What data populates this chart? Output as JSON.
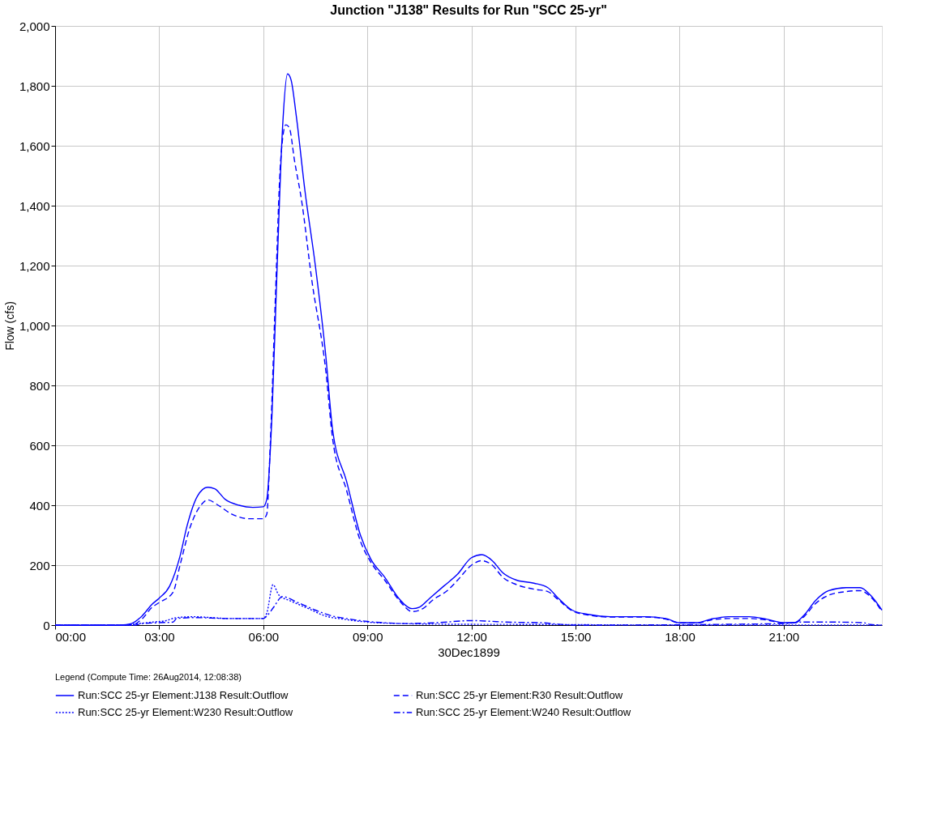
{
  "chart_data": {
    "type": "line",
    "title": "Junction \"J138\" Results for Run \"SCC 25-yr\"",
    "xlabel": "30Dec1899",
    "ylabel": "Flow (cfs)",
    "legend_title": "Legend (Compute Time: 26Aug2014, 12:08:38)",
    "legend": "bottom",
    "grid": true,
    "xlim": [
      0,
      23.83
    ],
    "xticks": [
      {
        "value": 0,
        "label": "00:00"
      },
      {
        "value": 3,
        "label": "03:00"
      },
      {
        "value": 6,
        "label": "06:00"
      },
      {
        "value": 9,
        "label": "09:00"
      },
      {
        "value": 12,
        "label": "12:00"
      },
      {
        "value": 15,
        "label": "15:00"
      },
      {
        "value": 18,
        "label": "18:00"
      },
      {
        "value": 21,
        "label": "21:00"
      }
    ],
    "ylim": [
      0,
      2000
    ],
    "yticks": [
      0,
      200,
      400,
      600,
      800,
      {
        "value": 1000,
        "label": "1,000"
      },
      {
        "value": 1200,
        "label": "1,200"
      },
      {
        "value": 1400,
        "label": "1,400"
      },
      {
        "value": 1600,
        "label": "1,600"
      },
      {
        "value": 1800,
        "label": "1,800"
      },
      {
        "value": 2000,
        "label": "2,000"
      }
    ],
    "series": [
      {
        "name": "Run:SCC 25-yr Element:J138 Result:Outflow",
        "color": "#0000ff",
        "line_style": "solid",
        "x": [
          0,
          1.9,
          2.2,
          2.5,
          2.8,
          3.0,
          3.3,
          3.6,
          3.8,
          4.1,
          4.4,
          4.6,
          4.9,
          5.3,
          5.7,
          6.0,
          6.1,
          6.25,
          6.4,
          6.55,
          6.7,
          6.8,
          6.95,
          7.2,
          7.5,
          7.8,
          8.0,
          8.4,
          8.8,
          9.1,
          9.5,
          9.9,
          10.3,
          10.5,
          10.8,
          11.2,
          11.6,
          12.0,
          12.3,
          12.6,
          12.9,
          13.3,
          13.8,
          14.2,
          14.5,
          14.9,
          15.4,
          16,
          17,
          17.6,
          18,
          18.5,
          18.9,
          19.4,
          20,
          20.5,
          21,
          21.3,
          21.6,
          21.9,
          22.3,
          22.8,
          23.2,
          23.5,
          23.83
        ],
        "values": [
          0,
          0,
          5,
          30,
          70,
          90,
          130,
          230,
          330,
          430,
          460,
          455,
          420,
          400,
          393,
          395,
          420,
          700,
          1200,
          1650,
          1840,
          1820,
          1700,
          1450,
          1200,
          900,
          650,
          480,
          300,
          220,
          160,
          90,
          55,
          60,
          90,
          130,
          170,
          225,
          235,
          215,
          175,
          150,
          140,
          125,
          90,
          50,
          35,
          28,
          28,
          22,
          8,
          8,
          20,
          28,
          28,
          20,
          8,
          8,
          35,
          80,
          115,
          125,
          125,
          100,
          50
        ]
      },
      {
        "name": "Run:SCC 25-yr Element:R30 Result:Outflow",
        "color": "#0000ff",
        "line_style": "dashed",
        "x": [
          0,
          2.2,
          2.5,
          2.8,
          3.0,
          3.4,
          3.6,
          3.9,
          4.2,
          4.4,
          4.7,
          5.1,
          5.6,
          6.0,
          6.1,
          6.2,
          6.35,
          6.5,
          6.65,
          6.75,
          6.9,
          7.1,
          7.4,
          7.8,
          8.0,
          8.4,
          8.8,
          9.1,
          9.5,
          9.9,
          10.3,
          10.6,
          10.9,
          11.3,
          11.6,
          12.0,
          12.3,
          12.6,
          12.9,
          13.3,
          13.8,
          14.2,
          14.5,
          14.9,
          15.4,
          16,
          17,
          17.6,
          18,
          18.5,
          18.9,
          19.4,
          20,
          20.5,
          21,
          21.3,
          21.6,
          21.9,
          22.3,
          22.8,
          23.2,
          23.5,
          23.83
        ],
        "values": [
          0,
          0,
          20,
          60,
          75,
          110,
          200,
          330,
          400,
          418,
          400,
          370,
          355,
          355,
          370,
          600,
          1100,
          1550,
          1670,
          1660,
          1550,
          1420,
          1150,
          850,
          620,
          450,
          280,
          210,
          150,
          85,
          45,
          55,
          85,
          115,
          150,
          200,
          215,
          200,
          160,
          135,
          120,
          112,
          85,
          48,
          33,
          27,
          27,
          20,
          7,
          7,
          17,
          22,
          22,
          17,
          7,
          7,
          30,
          70,
          100,
          112,
          115,
          95,
          45
        ]
      },
      {
        "name": "Run:SCC 25-yr Element:W230 Result:Outflow",
        "color": "#0000ff",
        "line_style": "dotted",
        "x": [
          0,
          2.0,
          2.4,
          2.8,
          3.2,
          3.5,
          4.0,
          4.5,
          5.0,
          6.0,
          6.1,
          6.28,
          6.45,
          6.8,
          7.3,
          7.8,
          8.3,
          9.0,
          10.0,
          11.0,
          14.0,
          18.0,
          21.0,
          23.83
        ],
        "values": [
          0,
          0,
          5,
          10,
          15,
          25,
          28,
          25,
          22,
          22,
          40,
          135,
          100,
          80,
          55,
          30,
          20,
          10,
          5,
          3,
          2,
          0,
          0,
          0
        ]
      },
      {
        "name": "Run:SCC 25-yr Element:W240 Result:Outflow",
        "color": "#0000ff",
        "line_style": "dashdot",
        "x": [
          0,
          2.3,
          2.5,
          3.0,
          3.4,
          3.5,
          4.0,
          5.0,
          6.0,
          6.1,
          6.3,
          6.55,
          7.0,
          7.5,
          8.0,
          8.5,
          9.0,
          9.5,
          10.0,
          11.0,
          12.0,
          12.5,
          13.0,
          14.0,
          14.5,
          15.0,
          21.0,
          21.5,
          22.5,
          23.3,
          23.5,
          23.83
        ],
        "values": [
          0,
          0,
          5,
          8,
          10,
          22,
          25,
          22,
          22,
          30,
          60,
          95,
          75,
          50,
          30,
          20,
          12,
          8,
          5,
          8,
          15,
          13,
          10,
          8,
          3,
          0,
          5,
          10,
          10,
          8,
          2,
          0
        ]
      }
    ]
  }
}
